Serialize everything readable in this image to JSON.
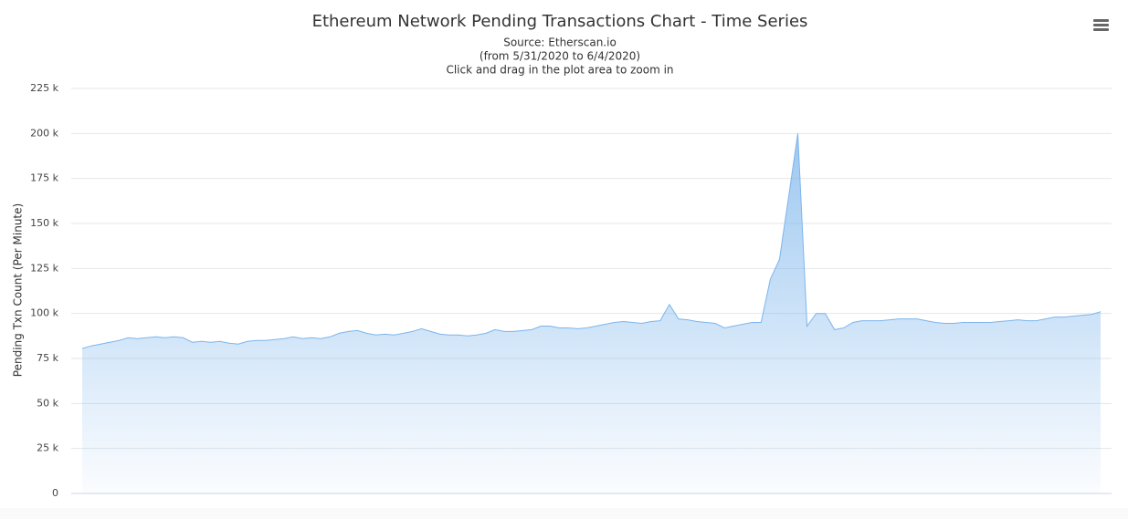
{
  "chart_data": {
    "type": "area",
    "title": "Ethereum Network Pending Transactions Chart - Time Series",
    "subtitle": [
      "Source: Etherscan.io",
      "(from 5/31/2020 to 6/4/2020)",
      "Click and drag in the plot area to zoom in"
    ],
    "y_label": "Pending Txn Count (Per Minute)",
    "color": "#7cb5ec",
    "grid": true,
    "ylim": [
      0,
      225000
    ],
    "yticks": [
      0,
      {
        "value": 25000,
        "label": "25 k"
      },
      {
        "value": 50000,
        "label": "50 k"
      },
      {
        "value": 75000,
        "label": "75 k"
      },
      {
        "value": 100000,
        "label": "100 k"
      },
      {
        "value": 125000,
        "label": "125 k"
      },
      {
        "value": 150000,
        "label": "150 k"
      },
      {
        "value": 175000,
        "label": "175 k"
      },
      {
        "value": 200000,
        "label": "200 k"
      },
      {
        "value": 225000,
        "label": "225 k"
      }
    ],
    "values": [
      80500,
      82000,
      83000,
      84000,
      85000,
      86500,
      86000,
      86500,
      87000,
      86500,
      87000,
      86500,
      84000,
      84500,
      84000,
      84500,
      83500,
      83000,
      84500,
      85000,
      85000,
      85500,
      86000,
      87000,
      86000,
      86500,
      86000,
      87000,
      89000,
      90000,
      90500,
      89000,
      88000,
      88500,
      88000,
      89000,
      90000,
      91500,
      90000,
      88500,
      88000,
      88000,
      87500,
      88000,
      89000,
      91000,
      90000,
      90000,
      90500,
      91000,
      93000,
      93000,
      92000,
      92000,
      91500,
      92000,
      93000,
      94000,
      95000,
      95500,
      95000,
      94500,
      95500,
      96000,
      105000,
      97000,
      96500,
      95500,
      95000,
      94500,
      92000,
      93000,
      94000,
      95000,
      95000,
      119000,
      130000,
      165000,
      200000,
      93000,
      100000,
      100000,
      91000,
      92000,
      95000,
      96000,
      96000,
      96000,
      96500,
      97000,
      97000,
      97000,
      96000,
      95000,
      94500,
      94500,
      95000,
      95000,
      95000,
      95000,
      95500,
      96000,
      96500,
      96000,
      96000,
      97000,
      98000,
      98000,
      98500,
      99000,
      99500,
      101000
    ]
  }
}
